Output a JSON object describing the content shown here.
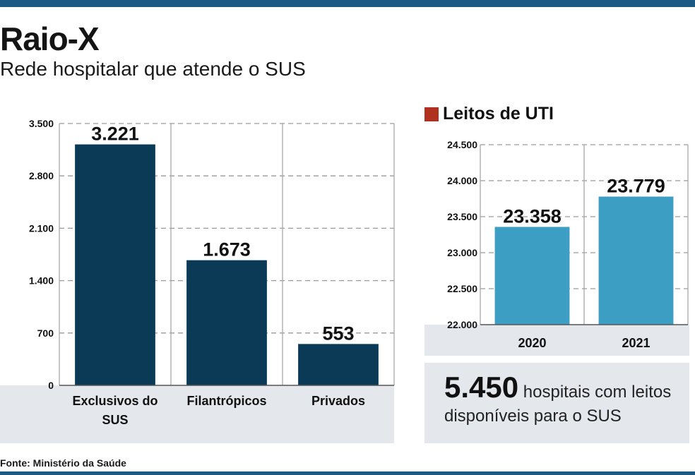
{
  "title": "Raio-X",
  "subtitle": "Rede hospitalar que atende o SUS",
  "source": "Fonte: Ministério da Saúde",
  "colors": {
    "header_bar": "#1d5a83",
    "hospital_bars": "#0b3a57",
    "uti_bars": "#3d9ec4",
    "uti_marker": "#b0311f",
    "panel_bg": "#e4e8ed"
  },
  "summary": {
    "number": "5.450",
    "text": "hospitais com leitos disponíveis para o SUS"
  },
  "chart_data": [
    {
      "type": "bar",
      "title": "",
      "categories": [
        "Exclusivos do SUS",
        "Filantrópicos",
        "Privados"
      ],
      "category_lines": [
        [
          "Exclusivos do",
          "SUS"
        ],
        [
          "Filantrópicos"
        ],
        [
          "Privados"
        ]
      ],
      "values": [
        3221,
        1673,
        553
      ],
      "value_labels": [
        "3.221",
        "1.673",
        "553"
      ],
      "ylim": [
        0,
        3500
      ],
      "yticks": [
        0,
        700,
        1400,
        2100,
        2800,
        3500
      ],
      "ytick_labels": [
        "0",
        "700",
        "1.400",
        "2.100",
        "2.800",
        "3.500"
      ],
      "grid": "dashed-horizontal",
      "color": "#0b3a57"
    },
    {
      "type": "bar",
      "title": "Leitos de UTI",
      "categories": [
        "2020",
        "2021"
      ],
      "category_lines": [
        [
          "2020"
        ],
        [
          "2021"
        ]
      ],
      "values": [
        23358,
        23779
      ],
      "value_labels": [
        "23.358",
        "23.779"
      ],
      "ylim": [
        22000,
        24500
      ],
      "yticks": [
        22000,
        22500,
        23000,
        23500,
        24000,
        24500
      ],
      "ytick_labels": [
        "22.000",
        "22.500",
        "23.000",
        "23.500",
        "24.000",
        "24.500"
      ],
      "grid": "dashed-horizontal",
      "color": "#3d9ec4"
    }
  ]
}
